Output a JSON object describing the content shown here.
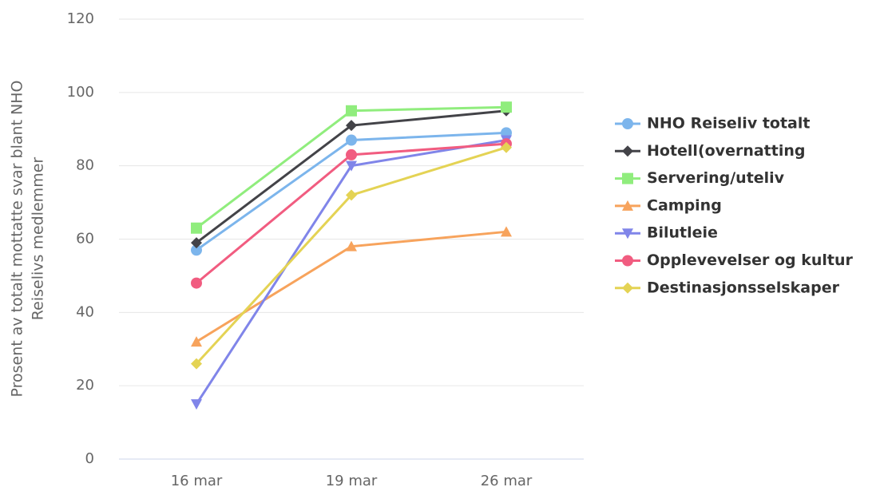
{
  "chart_data": {
    "type": "line",
    "y_label": [
      "Prosent av totalt mottatte svar blant NHO",
      "Reiselivs medlemmer"
    ],
    "categories": [
      "16 mar",
      "19 mar",
      "26 mar"
    ],
    "series": [
      {
        "name": "NHO Reiseliv totalt",
        "color": "#7cb5ec",
        "marker": "circle",
        "values": [
          57,
          87,
          89
        ]
      },
      {
        "name": "Hotell(overnatting",
        "color": "#434348",
        "marker": "diamond",
        "values": [
          59,
          91,
          95
        ]
      },
      {
        "name": "Servering/uteliv",
        "color": "#90ed7d",
        "marker": "square",
        "values": [
          63,
          95,
          96
        ]
      },
      {
        "name": "Camping",
        "color": "#f7a35c",
        "marker": "triangle",
        "values": [
          32,
          58,
          62
        ]
      },
      {
        "name": "Bilutleie",
        "color": "#8085e9",
        "marker": "triangle-down",
        "values": [
          15,
          80,
          87
        ]
      },
      {
        "name": "Opplevevelser og kultur",
        "color": "#f15c80",
        "marker": "circle",
        "values": [
          48,
          83,
          86
        ]
      },
      {
        "name": "Destinasjonsselskaper",
        "color": "#e4d354",
        "marker": "diamond",
        "values": [
          26,
          72,
          85
        ]
      }
    ],
    "ylim": [
      0,
      120
    ],
    "yticks": [
      0,
      20,
      40,
      60,
      80,
      100,
      120
    ],
    "grid": true,
    "legend": "right"
  }
}
